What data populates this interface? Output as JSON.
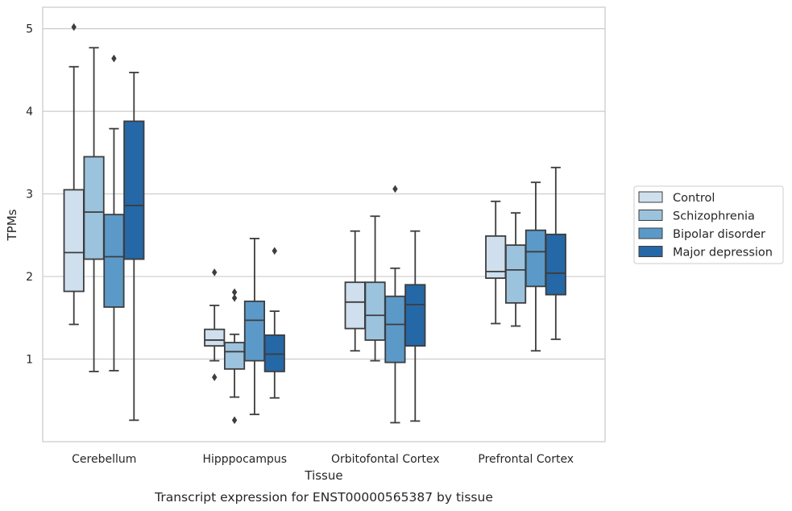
{
  "chart_data": {
    "type": "boxplot",
    "caption": "Transcript expression for ENST00000565387 by tissue",
    "xlabel": "Tissue",
    "ylabel": "TPMs",
    "ylim": [
      0,
      5.26
    ],
    "yticks": [
      1,
      2,
      3,
      4,
      5
    ],
    "grid": "horizontal",
    "legend_position": "right",
    "categories": [
      "Cerebellum",
      "Hipppocampus",
      "Orbitofontal Cortex",
      "Prefrontal Cortex"
    ],
    "series": [
      {
        "name": "Control",
        "color": "#d0dfee",
        "boxes": [
          {
            "whislo": 1.42,
            "q1": 1.82,
            "med": 2.29,
            "q3": 3.05,
            "whishi": 4.54,
            "fliers": [
              5.02
            ]
          },
          {
            "whislo": 0.98,
            "q1": 1.16,
            "med": 1.23,
            "q3": 1.36,
            "whishi": 1.65,
            "fliers": [
              2.05,
              0.78
            ]
          },
          {
            "whislo": 1.1,
            "q1": 1.37,
            "med": 1.69,
            "q3": 1.93,
            "whishi": 2.55,
            "fliers": []
          },
          {
            "whislo": 1.43,
            "q1": 1.98,
            "med": 2.06,
            "q3": 2.49,
            "whishi": 2.91,
            "fliers": []
          }
        ]
      },
      {
        "name": "Schizophrenia",
        "color": "#9cc3de",
        "boxes": [
          {
            "whislo": 0.85,
            "q1": 2.21,
            "med": 2.78,
            "q3": 3.45,
            "whishi": 4.77,
            "fliers": []
          },
          {
            "whislo": 0.54,
            "q1": 0.88,
            "med": 1.09,
            "q3": 1.2,
            "whishi": 1.3,
            "fliers": [
              1.81,
              1.74,
              0.26
            ]
          },
          {
            "whislo": 0.98,
            "q1": 1.23,
            "med": 1.53,
            "q3": 1.93,
            "whishi": 2.73,
            "fliers": []
          },
          {
            "whislo": 1.4,
            "q1": 1.68,
            "med": 2.08,
            "q3": 2.38,
            "whishi": 2.77,
            "fliers": []
          }
        ]
      },
      {
        "name": "Bipolar disorder",
        "color": "#5b9ac8",
        "boxes": [
          {
            "whislo": 0.86,
            "q1": 1.63,
            "med": 2.24,
            "q3": 2.75,
            "whishi": 3.79,
            "fliers": [
              4.64
            ]
          },
          {
            "whislo": 0.33,
            "q1": 0.98,
            "med": 1.47,
            "q3": 1.7,
            "whishi": 2.46,
            "fliers": []
          },
          {
            "whislo": 0.23,
            "q1": 0.96,
            "med": 1.42,
            "q3": 1.76,
            "whishi": 2.1,
            "fliers": [
              3.06
            ]
          },
          {
            "whislo": 1.1,
            "q1": 1.88,
            "med": 2.3,
            "q3": 2.56,
            "whishi": 3.14,
            "fliers": []
          }
        ]
      },
      {
        "name": "Major depression",
        "color": "#2568a8",
        "boxes": [
          {
            "whislo": 0.26,
            "q1": 2.21,
            "med": 2.86,
            "q3": 3.88,
            "whishi": 4.47,
            "fliers": []
          },
          {
            "whislo": 0.53,
            "q1": 0.85,
            "med": 1.06,
            "q3": 1.29,
            "whishi": 1.58,
            "fliers": [
              2.31
            ]
          },
          {
            "whislo": 0.25,
            "q1": 1.16,
            "med": 1.66,
            "q3": 1.9,
            "whishi": 2.55,
            "fliers": []
          },
          {
            "whislo": 1.24,
            "q1": 1.78,
            "med": 2.04,
            "q3": 2.51,
            "whishi": 3.32,
            "fliers": []
          }
        ]
      }
    ]
  }
}
